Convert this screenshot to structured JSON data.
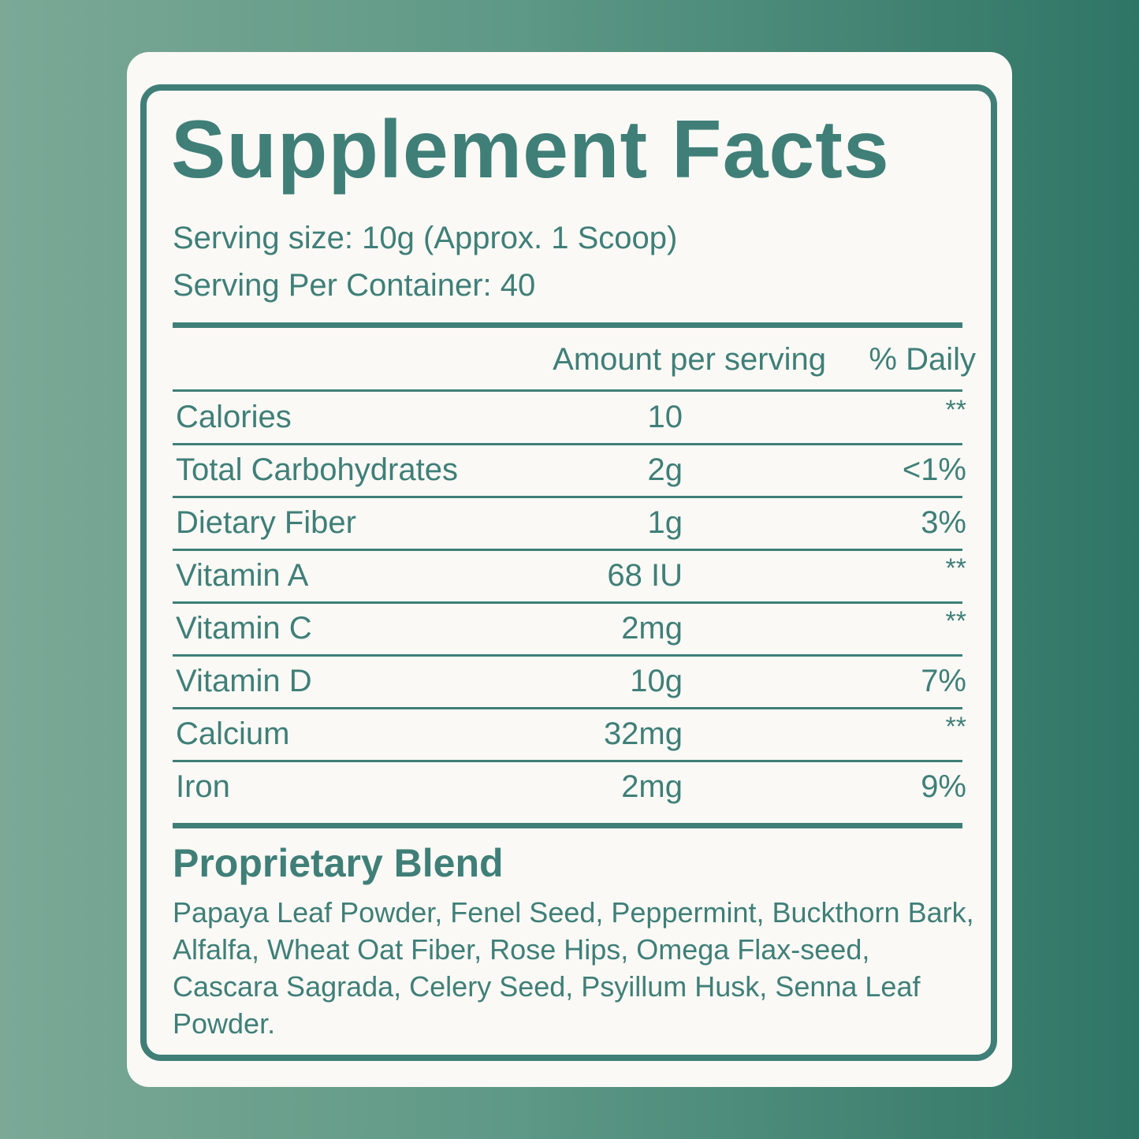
{
  "label": {
    "title": "Supplement Facts",
    "serving_size": "Serving size: 10g (Approx. 1 Scoop)",
    "servings_per_container": "Serving Per Container: 40",
    "headers": {
      "amount": "Amount per serving",
      "daily": "% Daily"
    },
    "rows": [
      {
        "name": "Calories",
        "amount": "10",
        "daily": "**"
      },
      {
        "name": "Total Carbohydrates",
        "amount": "2g",
        "daily": "<1%"
      },
      {
        "name": "Dietary Fiber",
        "amount": "1g",
        "daily": "3%"
      },
      {
        "name": "Vitamin A",
        "amount": "68 IU",
        "daily": "**"
      },
      {
        "name": "Vitamin C",
        "amount": "2mg",
        "daily": "**"
      },
      {
        "name": "Vitamin D",
        "amount": "10g",
        "daily": "7%"
      },
      {
        "name": "Calcium",
        "amount": "32mg",
        "daily": "**"
      },
      {
        "name": "Iron",
        "amount": "2mg",
        "daily": "9%"
      }
    ],
    "blend": {
      "title": "Proprietary Blend",
      "ingredients": "Papaya Leaf Powder, Fenel Seed, Peppermint, Buckthorn Bark, Alfalfa, Wheat Oat Fiber, Rose Hips, Omega Flax-seed, Cascara Sagrada, Celery Seed, Psyillum Husk, Senna Leaf Powder."
    }
  },
  "colors": {
    "ink": "#3f7f78",
    "card": "#fbf9f5",
    "background_left": "#7ba996",
    "background_right": "#2f7566"
  }
}
